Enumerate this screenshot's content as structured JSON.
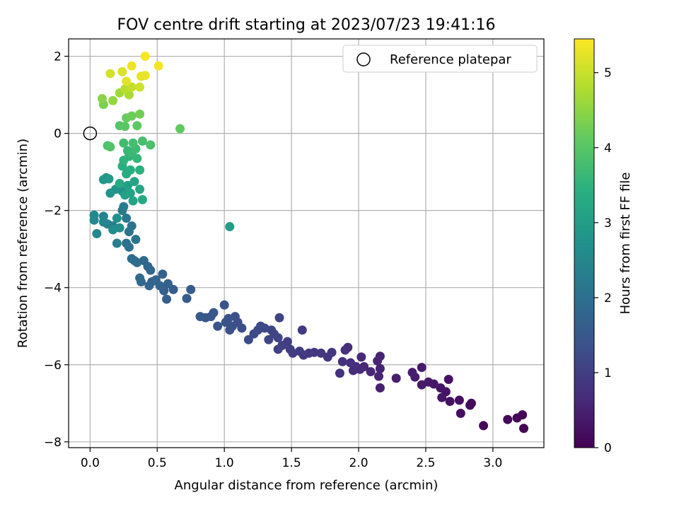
{
  "chart_data": {
    "type": "scatter",
    "title": "FOV centre drift starting at 2023/07/23 19:41:16",
    "xlabel": "Angular distance from reference (arcmin)",
    "ylabel": "Rotation from reference (arcmin)",
    "xlim": [
      -0.16,
      3.38
    ],
    "ylim": [
      -8.15,
      2.45
    ],
    "xticks": [
      "0.0",
      "0.5",
      "1.0",
      "1.5",
      "2.0",
      "2.5",
      "3.0"
    ],
    "yticks": [
      "−8",
      "−6",
      "−4",
      "−2",
      "0",
      "2"
    ],
    "grid": true,
    "legend": {
      "position": "top-right",
      "label": "Reference platepar"
    },
    "reference_point": {
      "x": 0.0,
      "y": 0.0
    },
    "colorbar": {
      "label": "Hours from first FF file",
      "range": [
        0,
        5.45
      ],
      "ticks": [
        "0",
        "1",
        "2",
        "3",
        "4",
        "5"
      ],
      "colormap": "viridis"
    },
    "points": [
      [
        3.23,
        -7.65,
        0.02
      ],
      [
        3.22,
        -7.3,
        0.05
      ],
      [
        3.18,
        -7.38,
        0.08
      ],
      [
        3.11,
        -7.42,
        0.1
      ],
      [
        2.93,
        -7.58,
        0.12
      ],
      [
        2.84,
        -7.0,
        0.15
      ],
      [
        2.83,
        -7.05,
        0.17
      ],
      [
        2.76,
        -7.26,
        0.2
      ],
      [
        2.75,
        -6.92,
        0.22
      ],
      [
        2.68,
        -6.95,
        0.25
      ],
      [
        2.67,
        -6.38,
        0.27
      ],
      [
        2.65,
        -6.7,
        0.29
      ],
      [
        2.62,
        -6.85,
        0.31
      ],
      [
        2.61,
        -6.6,
        0.33
      ],
      [
        2.56,
        -6.5,
        0.35
      ],
      [
        2.52,
        -6.45,
        0.37
      ],
      [
        2.47,
        -6.52,
        0.39
      ],
      [
        2.47,
        -6.07,
        0.41
      ],
      [
        2.42,
        -6.32,
        0.43
      ],
      [
        2.4,
        -6.2,
        0.45
      ],
      [
        2.28,
        -6.35,
        0.48
      ],
      [
        2.16,
        -6.6,
        0.5
      ],
      [
        2.16,
        -6.1,
        0.52
      ],
      [
        2.16,
        -5.78,
        0.54
      ],
      [
        2.15,
        -6.3,
        0.56
      ],
      [
        2.14,
        -5.9,
        0.58
      ],
      [
        2.09,
        -6.18,
        0.6
      ],
      [
        2.04,
        -6.05,
        0.62
      ],
      [
        2.02,
        -5.8,
        0.64
      ],
      [
        2.01,
        -6.12,
        0.66
      ],
      [
        1.98,
        -6.05,
        0.68
      ],
      [
        1.96,
        -6.15,
        0.7
      ],
      [
        1.94,
        -5.95,
        0.72
      ],
      [
        1.92,
        -5.55,
        0.74
      ],
      [
        1.9,
        -5.62,
        0.76
      ],
      [
        1.88,
        -5.92,
        0.78
      ],
      [
        1.86,
        -6.22,
        0.8
      ],
      [
        1.8,
        -5.68,
        0.82
      ],
      [
        1.77,
        -5.8,
        0.84
      ],
      [
        1.72,
        -5.7,
        0.86
      ],
      [
        1.67,
        -5.68,
        0.88
      ],
      [
        1.63,
        -5.7,
        0.9
      ],
      [
        1.59,
        -5.75,
        0.92
      ],
      [
        1.58,
        -5.1,
        0.94
      ],
      [
        1.56,
        -5.65,
        0.96
      ],
      [
        1.51,
        -5.7,
        0.98
      ],
      [
        1.49,
        -5.6,
        1.0
      ],
      [
        1.47,
        -5.4,
        1.02
      ],
      [
        1.43,
        -5.5,
        1.04
      ],
      [
        1.4,
        -5.6,
        1.06
      ],
      [
        1.41,
        -4.78,
        1.08
      ],
      [
        1.4,
        -5.3,
        1.1
      ],
      [
        1.37,
        -5.2,
        1.12
      ],
      [
        1.35,
        -5.1,
        1.14
      ],
      [
        1.33,
        -5.35,
        1.16
      ],
      [
        1.3,
        -5.05,
        1.18
      ],
      [
        1.27,
        -5.0,
        1.2
      ],
      [
        1.25,
        -5.1,
        1.22
      ],
      [
        1.22,
        -5.2,
        1.24
      ],
      [
        1.18,
        -5.35,
        1.26
      ],
      [
        1.13,
        -5.05,
        1.28
      ],
      [
        1.1,
        -4.9,
        1.3
      ],
      [
        1.08,
        -4.75,
        1.32
      ],
      [
        1.06,
        -5.0,
        1.34
      ],
      [
        1.04,
        -5.1,
        1.36
      ],
      [
        1.03,
        -4.8,
        1.38
      ],
      [
        1.01,
        -4.9,
        1.4
      ],
      [
        1.0,
        -4.45,
        1.42
      ],
      [
        0.95,
        -5.0,
        1.44
      ],
      [
        0.92,
        -4.65,
        1.46
      ],
      [
        0.9,
        -4.75,
        1.48
      ],
      [
        0.86,
        -4.78,
        1.5
      ],
      [
        0.82,
        -4.75,
        1.52
      ],
      [
        0.75,
        -4.05,
        1.56
      ],
      [
        0.72,
        -4.28,
        1.58
      ],
      [
        0.62,
        -4.05,
        1.62
      ],
      [
        0.58,
        -3.9,
        1.64
      ],
      [
        0.57,
        -4.3,
        1.66
      ],
      [
        0.55,
        -4.08,
        1.68
      ],
      [
        0.54,
        -3.65,
        1.7
      ],
      [
        0.52,
        -3.95,
        1.72
      ],
      [
        0.49,
        -3.8,
        1.74
      ],
      [
        0.46,
        -3.85,
        1.76
      ],
      [
        0.44,
        -3.95,
        1.78
      ],
      [
        0.45,
        -3.55,
        1.8
      ],
      [
        0.43,
        -3.45,
        1.82
      ],
      [
        0.4,
        -3.3,
        1.84
      ],
      [
        0.38,
        -3.85,
        1.86
      ],
      [
        0.37,
        -3.75,
        1.88
      ],
      [
        0.35,
        -3.35,
        1.9
      ],
      [
        0.33,
        -3.3,
        1.92
      ],
      [
        0.31,
        -3.25,
        1.94
      ],
      [
        0.29,
        -2.95,
        1.98
      ],
      [
        0.27,
        -2.85,
        2.02
      ],
      [
        0.29,
        -2.55,
        2.06
      ],
      [
        0.31,
        -2.4,
        2.1
      ],
      [
        0.34,
        -2.75,
        2.14
      ],
      [
        0.27,
        -2.2,
        2.18
      ],
      [
        0.24,
        -2.0,
        2.22
      ],
      [
        0.25,
        -1.9,
        2.26
      ],
      [
        0.2,
        -2.85,
        2.3
      ],
      [
        0.17,
        -2.4,
        2.34
      ],
      [
        0.13,
        -2.35,
        2.38
      ],
      [
        0.1,
        -2.15,
        2.42
      ],
      [
        0.1,
        -2.3,
        2.46
      ],
      [
        0.05,
        -2.6,
        2.5
      ],
      [
        0.03,
        -2.25,
        2.54
      ],
      [
        0.03,
        -2.12,
        2.58
      ],
      [
        0.17,
        -2.5,
        2.62
      ],
      [
        0.22,
        -2.45,
        2.66
      ],
      [
        0.2,
        -2.2,
        2.7
      ],
      [
        0.24,
        -1.5,
        2.74
      ],
      [
        0.19,
        -1.45,
        2.78
      ],
      [
        0.15,
        -1.55,
        2.82
      ],
      [
        0.1,
        -1.2,
        2.86
      ],
      [
        0.12,
        -1.15,
        2.9
      ],
      [
        0.14,
        -1.18,
        2.94
      ],
      [
        1.04,
        -2.42,
        2.98
      ],
      [
        0.26,
        -1.6,
        3.02
      ],
      [
        0.28,
        -1.35,
        3.06
      ],
      [
        0.3,
        -1.55,
        3.1
      ],
      [
        0.32,
        -1.75,
        3.14
      ],
      [
        0.33,
        -1.25,
        3.18
      ],
      [
        0.37,
        -1.45,
        3.22
      ],
      [
        0.39,
        -1.72,
        3.26
      ],
      [
        0.22,
        -1.3,
        3.3
      ],
      [
        0.27,
        -1.05,
        3.34
      ],
      [
        0.3,
        -0.95,
        3.38
      ],
      [
        0.24,
        -0.85,
        3.42
      ],
      [
        0.37,
        -0.95,
        3.46
      ],
      [
        0.25,
        -0.7,
        3.5
      ],
      [
        0.29,
        -0.6,
        3.54
      ],
      [
        0.35,
        -0.65,
        3.58
      ],
      [
        0.28,
        -0.45,
        3.62
      ],
      [
        0.31,
        -0.5,
        3.66
      ],
      [
        0.34,
        -0.4,
        3.7
      ],
      [
        0.25,
        -0.25,
        3.74
      ],
      [
        0.32,
        -0.25,
        3.78
      ],
      [
        0.39,
        -0.2,
        3.82
      ],
      [
        0.45,
        -0.3,
        3.86
      ],
      [
        0.13,
        -0.32,
        3.9
      ],
      [
        0.15,
        -0.35,
        3.94
      ],
      [
        0.22,
        0.2,
        3.98
      ],
      [
        0.26,
        0.18,
        4.02
      ],
      [
        0.35,
        0.2,
        4.06
      ],
      [
        0.67,
        0.12,
        4.1
      ],
      [
        0.27,
        0.4,
        4.15
      ],
      [
        0.31,
        0.45,
        4.2
      ],
      [
        0.37,
        0.5,
        4.25
      ],
      [
        0.1,
        0.75,
        4.35
      ],
      [
        0.09,
        0.9,
        4.45
      ],
      [
        0.17,
        0.85,
        4.55
      ],
      [
        0.22,
        1.05,
        4.65
      ],
      [
        0.29,
        1.0,
        4.75
      ],
      [
        0.26,
        1.15,
        4.85
      ],
      [
        0.31,
        1.2,
        4.95
      ],
      [
        0.37,
        1.2,
        5.05
      ],
      [
        0.15,
        1.55,
        5.1
      ],
      [
        0.24,
        1.6,
        5.15
      ],
      [
        0.27,
        1.35,
        5.2
      ],
      [
        0.38,
        1.48,
        5.25
      ],
      [
        0.41,
        1.5,
        5.28
      ],
      [
        0.31,
        1.75,
        5.32
      ],
      [
        0.51,
        1.75,
        5.36
      ],
      [
        0.41,
        2.0,
        5.4
      ]
    ]
  }
}
